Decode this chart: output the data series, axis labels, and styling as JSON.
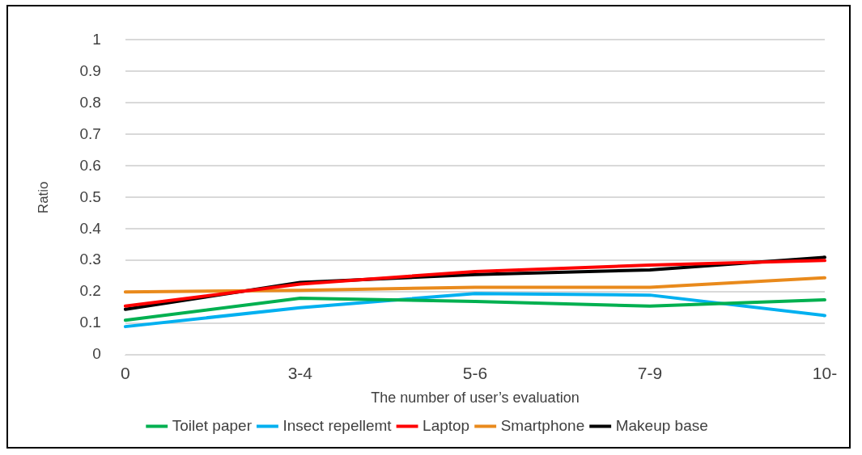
{
  "chart_data": {
    "type": "line",
    "xlabel": "The number of user’s evaluation",
    "ylabel": "Ratio",
    "categories": [
      "0",
      "3-4",
      "5-6",
      "7-9",
      "10-"
    ],
    "ylim": [
      0,
      1
    ],
    "yticks": [
      0,
      0.1,
      0.2,
      0.3,
      0.4,
      0.5,
      0.6,
      0.7,
      0.8,
      0.9,
      1
    ],
    "grid": "y",
    "legend": "bottom",
    "marker": "none",
    "line_style": "solid",
    "series": [
      {
        "name": "Toilet paper",
        "color": "#00b050",
        "values": [
          0.11,
          0.18,
          0.17,
          0.155,
          0.175
        ]
      },
      {
        "name": "Insect repellemt",
        "color": "#00b0f0",
        "values": [
          0.09,
          0.15,
          0.195,
          0.19,
          0.125
        ]
      },
      {
        "name": "Laptop",
        "color": "#ff0000",
        "values": [
          0.155,
          0.225,
          0.265,
          0.285,
          0.3
        ]
      },
      {
        "name": "Smartphone",
        "color": "#e98a1c",
        "values": [
          0.2,
          0.205,
          0.215,
          0.215,
          0.245
        ]
      },
      {
        "name": "Makeup base",
        "color": "#000000",
        "values": [
          0.145,
          0.23,
          0.255,
          0.27,
          0.31
        ]
      }
    ]
  }
}
